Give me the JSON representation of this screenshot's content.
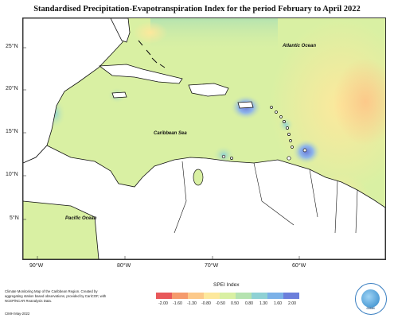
{
  "title": "Standardised Precipitation-Evapotranspiration Index for the period February to April 2022",
  "lat_labels": [
    "25°N",
    "20°N",
    "15°N",
    "10°N",
    "5°N"
  ],
  "lon_labels": [
    "90°W",
    "80°W",
    "70°W",
    "60°W"
  ],
  "ocean_labels": {
    "atlantic": "Atlantic Ocean",
    "caribbean": "Caribbean Sea",
    "pacific": "Pacific Ocean"
  },
  "footer": {
    "note": "Climate Monitoring Map of the Caribbean Region. Created by aggregating station based observations, provided by CariCOF, with NCEP/NCAR Reanalysis Data.",
    "credit": "CIMH May-2022"
  },
  "legend": {
    "title": "SPEI Index",
    "ticks": [
      "-2.00",
      "-1.60",
      "-1.30",
      "-0.80",
      "-0.50",
      "0.50",
      "0.80",
      "1.30",
      "1.60",
      "2.00"
    ],
    "colors": [
      "#e8585a",
      "#f59a6c",
      "#fcc98a",
      "#fde89c",
      "#d9f0a3",
      "#b5e3b0",
      "#8fd1d4",
      "#7bb1e8",
      "#6c7fdb"
    ]
  },
  "logo": {
    "text": "CIMH"
  }
}
